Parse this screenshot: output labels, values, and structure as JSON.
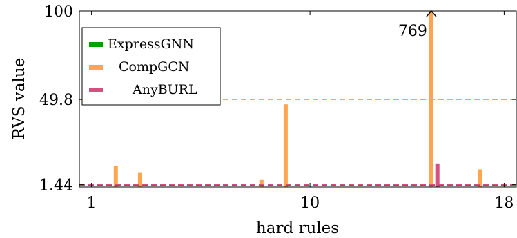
{
  "chart_data": {
    "type": "bar",
    "xlabel": "hard rules",
    "ylabel": "RVS value",
    "x_range": [
      0.5,
      18.5
    ],
    "x_ticks": [
      "1",
      "10",
      "18"
    ],
    "y_ticks": [
      "1.44",
      "49.8",
      "100"
    ],
    "y_tick_values": [
      1.44,
      49.8,
      100
    ],
    "ylim": [
      0,
      100
    ],
    "legend_position": "top-left",
    "series": [
      {
        "name": "ExpressGNN",
        "color": "#00a000",
        "offset": -0.25,
        "points": [],
        "reference": 1.0
      },
      {
        "name": "CompGCN",
        "color": "#ffa54f",
        "offset": 0,
        "points": [
          [
            2,
            12
          ],
          [
            3,
            8
          ],
          [
            8,
            4
          ],
          [
            9,
            47
          ],
          [
            15,
            100
          ],
          [
            17,
            10
          ]
        ],
        "reference": 49.8
      },
      {
        "name": "AnyBURL",
        "color": "#d64f81",
        "offset": 0.25,
        "points": [
          [
            15,
            13
          ]
        ],
        "reference": 1.44
      }
    ],
    "annotations": [
      {
        "text": "769",
        "x": 15,
        "y": 100
      }
    ]
  }
}
